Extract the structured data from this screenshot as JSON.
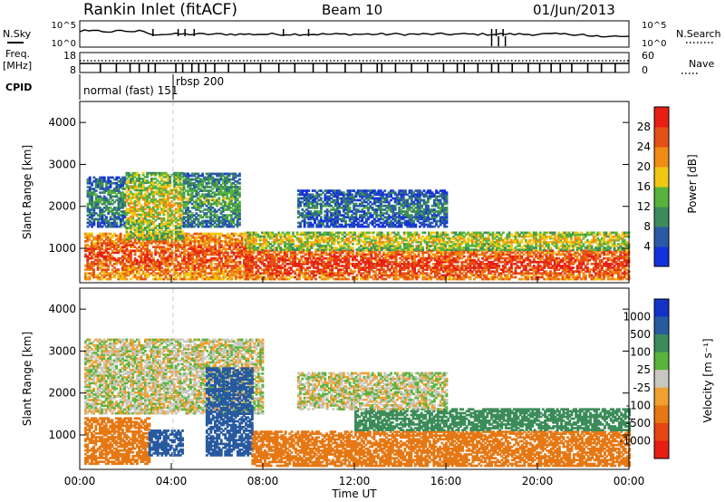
{
  "header": {
    "station": "Rankin Inlet (fitACF)",
    "beam": "Beam 10",
    "date": "01/Jun/2013"
  },
  "nsky_panel": {
    "label": "N.Sky",
    "right_label": "N.Search",
    "left_ticks": [
      "10^5",
      "10^0"
    ],
    "right_ticks": [
      "10^5",
      "10^0"
    ]
  },
  "freq_panel": {
    "label_line1": "Freq.",
    "label_line2": "[MHz]",
    "right_label": "Nave",
    "left_ticks": [
      "18",
      "8"
    ],
    "right_ticks": [
      "60",
      "0"
    ]
  },
  "cpid": {
    "label": "CPID",
    "entries": [
      "normal (fast) 151",
      "rbsp 200"
    ]
  },
  "colors": {
    "power": [
      "#1432dc",
      "#2a5aa6",
      "#3c8c5a",
      "#56b43c",
      "#f0c814",
      "#f08c14",
      "#e65014",
      "#e61e14"
    ],
    "velocity": [
      "#1432c8",
      "#285aa0",
      "#3c8c5a",
      "#5ab43c",
      "#c8c8c0",
      "#f0a030",
      "#e67814",
      "#e64614",
      "#e61e14"
    ]
  },
  "chart_data": [
    {
      "type": "heatmap",
      "title": "",
      "xlabel": "",
      "ylabel": "Slant Range [km]",
      "x_ticks": [
        "00:00",
        "04:00",
        "08:00",
        "12:00",
        "16:00",
        "20:00",
        "00:00"
      ],
      "y_ticks": [
        "1000",
        "2000",
        "3000",
        "4000"
      ],
      "xlim": [
        0,
        24
      ],
      "ylim": [
        180,
        4500
      ],
      "colorbar": {
        "label": "Power [dB]",
        "ticks": [
          "4",
          "8",
          "12",
          "16",
          "20",
          "24",
          "28"
        ],
        "range": [
          0,
          32
        ]
      },
      "features": [
        {
          "t0": 0.2,
          "t1": 7.5,
          "r0": 250,
          "r1": 1350,
          "level": 24
        },
        {
          "t0": 0.3,
          "t1": 2.0,
          "r0": 1500,
          "r1": 2700,
          "level": 8
        },
        {
          "t0": 2.0,
          "t1": 4.5,
          "r0": 1200,
          "r1": 2800,
          "level": 16
        },
        {
          "t0": 4.5,
          "t1": 7.0,
          "r0": 1500,
          "r1": 2800,
          "level": 10
        },
        {
          "t0": 7.2,
          "t1": 24.0,
          "r0": 250,
          "r1": 950,
          "level": 26
        },
        {
          "t0": 7.2,
          "t1": 24.0,
          "r0": 950,
          "r1": 1400,
          "level": 16
        },
        {
          "t0": 9.5,
          "t1": 16.0,
          "r0": 1500,
          "r1": 2400,
          "level": 6
        }
      ]
    },
    {
      "type": "heatmap",
      "title": "",
      "xlabel": "Time UT",
      "ylabel": "Slant Range [km]",
      "x_ticks": [
        "00:00",
        "04:00",
        "08:00",
        "12:00",
        "16:00",
        "20:00",
        "00:00"
      ],
      "y_ticks": [
        "1000",
        "2000",
        "3000",
        "4000"
      ],
      "xlim": [
        0,
        24
      ],
      "ylim": [
        180,
        4500
      ],
      "colorbar": {
        "label": "Velocity [m s⁻¹]",
        "ticks": [
          "1000",
          "500",
          "100",
          "25",
          "-25",
          "-100",
          "-500",
          "-1000"
        ]
      },
      "features": [
        {
          "t0": 0.2,
          "t1": 8.0,
          "r0": 1500,
          "r1": 3300,
          "level": 0
        },
        {
          "t0": 0.2,
          "t1": 3.0,
          "r0": 300,
          "r1": 1400,
          "level": -300
        },
        {
          "t0": 3.0,
          "t1": 4.5,
          "r0": 500,
          "r1": 1100,
          "level": 800
        },
        {
          "t0": 5.5,
          "t1": 7.5,
          "r0": 500,
          "r1": 2600,
          "level": 900
        },
        {
          "t0": 7.5,
          "t1": 24.0,
          "r0": 250,
          "r1": 1100,
          "level": -200
        },
        {
          "t0": 12.0,
          "t1": 24.0,
          "r0": 1100,
          "r1": 1600,
          "level": 300
        },
        {
          "t0": 9.5,
          "t1": 16.0,
          "r0": 1600,
          "r1": 2500,
          "level": 0
        }
      ]
    }
  ],
  "xaxis_label": "Time UT"
}
